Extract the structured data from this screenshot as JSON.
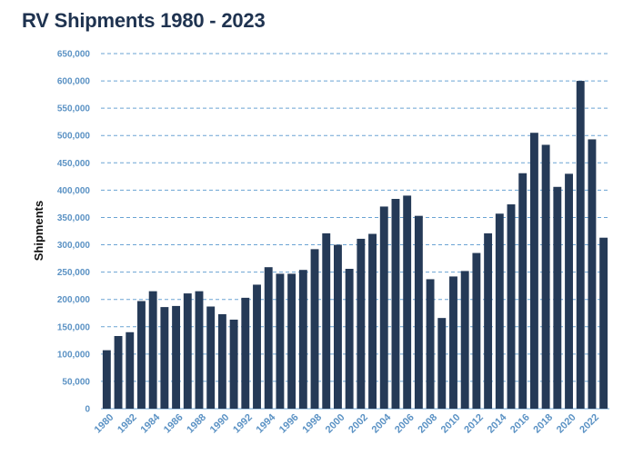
{
  "title": "RV Shipments 1980 - 2023",
  "colors": {
    "bar": "#253a57",
    "grid": "#6aa3d3",
    "tick": "#5b92c4",
    "title": "#1f3350"
  },
  "chart_data": {
    "type": "bar",
    "title": "RV Shipments 1980 - 2023",
    "xlabel": "",
    "ylabel": "Shipments",
    "ylim": [
      0,
      650000
    ],
    "yticks": [
      0,
      50000,
      100000,
      150000,
      200000,
      250000,
      300000,
      350000,
      400000,
      450000,
      500000,
      550000,
      600000,
      650000
    ],
    "ytick_labels": [
      "0",
      "50,000",
      "100,000",
      "150,000",
      "200,000",
      "250,000",
      "300,000",
      "350,000",
      "400,000",
      "450,000",
      "500,000",
      "550,000",
      "600,000",
      "650,000"
    ],
    "xtick_labels": [
      "1980",
      "1982",
      "1984",
      "1986",
      "1988",
      "1990",
      "1992",
      "1994",
      "1996",
      "1998",
      "2000",
      "2002",
      "2004",
      "2006",
      "2008",
      "2010",
      "2012",
      "2014",
      "2016",
      "2018",
      "2020",
      "2022"
    ],
    "grid": true,
    "categories": [
      "1980",
      "1981",
      "1982",
      "1983",
      "1984",
      "1985",
      "1986",
      "1987",
      "1988",
      "1989",
      "1990",
      "1991",
      "1992",
      "1993",
      "1994",
      "1995",
      "1996",
      "1997",
      "1998",
      "1999",
      "2000",
      "2001",
      "2002",
      "2003",
      "2004",
      "2005",
      "2006",
      "2007",
      "2008",
      "2009",
      "2010",
      "2011",
      "2012",
      "2013",
      "2014",
      "2015",
      "2016",
      "2017",
      "2018",
      "2019",
      "2020",
      "2021",
      "2022",
      "2023"
    ],
    "values": [
      107000,
      133000,
      140000,
      197000,
      215000,
      186000,
      188000,
      211000,
      215000,
      187000,
      173000,
      163000,
      203000,
      227000,
      259000,
      247000,
      247000,
      254000,
      292000,
      321000,
      300000,
      256000,
      311000,
      320000,
      370000,
      384000,
      390000,
      353000,
      237000,
      166000,
      242000,
      252000,
      285000,
      321000,
      357000,
      374000,
      431000,
      505000,
      483000,
      406000,
      430000,
      600000,
      493000,
      313000
    ]
  }
}
